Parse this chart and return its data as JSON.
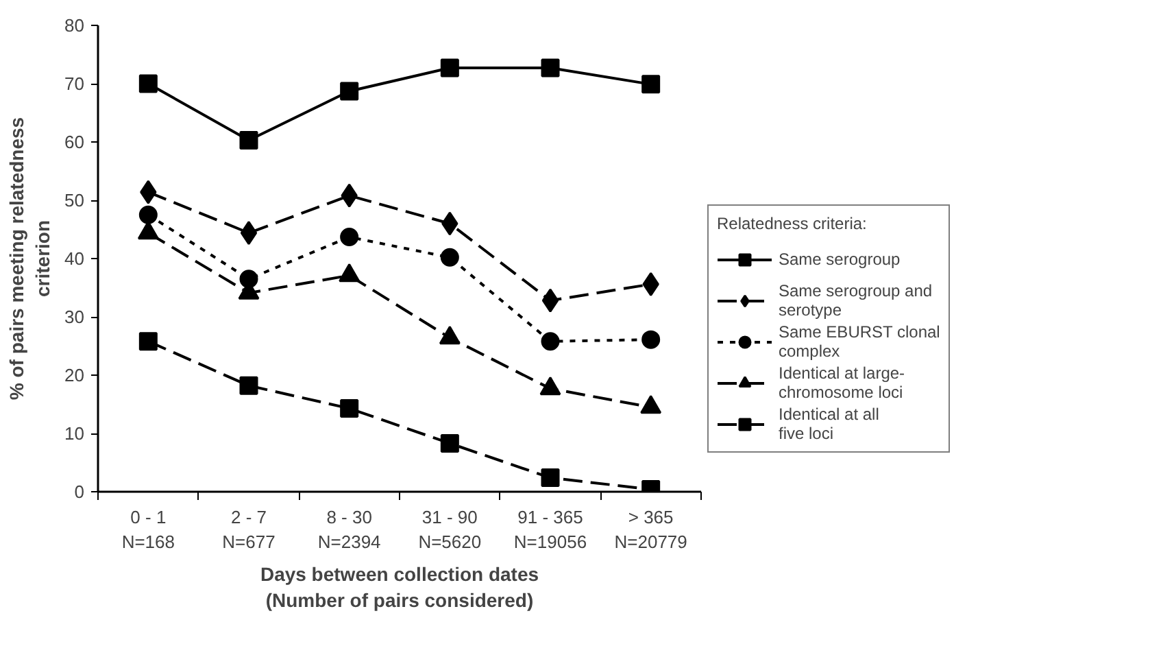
{
  "chart_data": {
    "type": "line",
    "xlabel": "Days between collection dates\n(Number of pairs considered)",
    "ylabel": "% of pairs meeting relatedness\ncriterion",
    "legend_title": "Relatedness criteria:",
    "categories": [
      "0 - 1\nN=168",
      "2 - 7\nN=677",
      "8 - 30\nN=2394",
      "31 - 90\nN=5620",
      "91 - 365\nN=19056",
      "> 365\nN=20779"
    ],
    "series": [
      {
        "name": "Same serogroup",
        "color": "#000000",
        "marker": "square",
        "line_style": "solid",
        "values": [
          70,
          60.3,
          68.7,
          72.7,
          72.7,
          69.9
        ]
      },
      {
        "name": "Same serogroup and serotype",
        "color": "#000000",
        "marker": "diamond",
        "line_style": "dashed",
        "values": [
          51.4,
          44.4,
          50.8,
          46,
          32.8,
          35.6
        ]
      },
      {
        "name": "Same EBURST clonal complex",
        "color": "#000000",
        "marker": "circle",
        "line_style": "dotted",
        "values": [
          47.5,
          36.5,
          43.7,
          40.2,
          25.8,
          26.1
        ]
      },
      {
        "name": "Identical at large-chromosome loci",
        "color": "#000000",
        "marker": "triangle",
        "line_style": "dashed",
        "values": [
          44.4,
          34.1,
          37.1,
          26.4,
          17.7,
          14.5
        ]
      },
      {
        "name": "Identical at all five loci",
        "color": "#000000",
        "marker": "square",
        "line_style": "dashed",
        "values": [
          25.8,
          18.2,
          14.3,
          8.3,
          2.4,
          0.4
        ]
      }
    ],
    "ylim": [
      0,
      80
    ],
    "yticks": [
      0,
      10,
      20,
      30,
      40,
      50,
      60,
      70,
      80
    ],
    "grid": false,
    "legend": "right"
  }
}
